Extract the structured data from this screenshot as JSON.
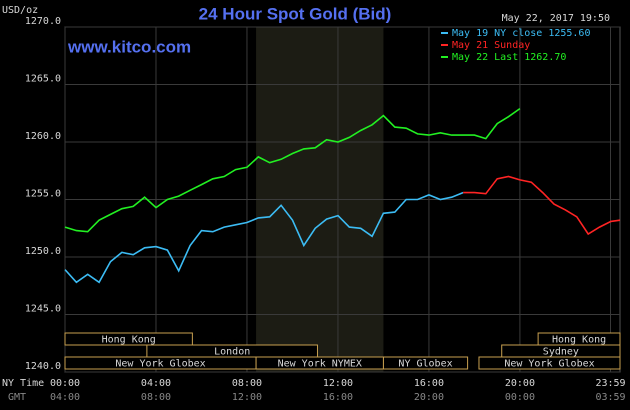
{
  "chart_data": {
    "type": "line",
    "title": "24 Hour Spot Gold (Bid)",
    "website": "www.kitco.com",
    "y_label": "USD/oz",
    "timestamp": "May 22, 2017 19:50",
    "x_label": "NY Time",
    "x2_label": "GMT",
    "xlim": [
      0,
      24.4
    ],
    "ylim": [
      1240,
      1270
    ],
    "yticks": [
      {
        "value": 1240,
        "label": "1240.0"
      },
      {
        "value": 1245,
        "label": "1245.0"
      },
      {
        "value": 1250,
        "label": "1250.0"
      },
      {
        "value": 1255,
        "label": "1255.0"
      },
      {
        "value": 1260,
        "label": "1260.0"
      },
      {
        "value": 1265,
        "label": "1265.0"
      },
      {
        "value": 1270,
        "label": "1270.0"
      }
    ],
    "xticks": [
      {
        "value": 0,
        "label": "00:00"
      },
      {
        "value": 4,
        "label": "04:00"
      },
      {
        "value": 8,
        "label": "08:00"
      },
      {
        "value": 12,
        "label": "12:00"
      },
      {
        "value": 16,
        "label": "16:00"
      },
      {
        "value": 20,
        "label": "20:00"
      },
      {
        "value": 23.983,
        "label": "23:59"
      }
    ],
    "gmt_labels": [
      "04:00",
      "08:00",
      "12:00",
      "16:00",
      "20:00",
      "00:00",
      "03:59"
    ],
    "grid": true,
    "series": [
      {
        "name": "May 19 NY close 1255.60",
        "color": "#3cbcf4",
        "x": [
          0,
          0.5,
          1,
          1.5,
          2,
          2.5,
          3,
          3.5,
          4,
          4.5,
          5,
          5.5,
          6,
          6.5,
          7,
          7.5,
          8,
          8.5,
          9,
          9.5,
          10,
          10.5,
          11,
          11.5,
          12,
          12.5,
          13,
          13.5,
          14,
          14.5,
          15,
          15.5,
          16,
          16.5,
          17,
          17.5
        ],
        "values": [
          1248.9,
          1247.8,
          1248.5,
          1247.8,
          1249.6,
          1250.4,
          1250.2,
          1250.8,
          1250.9,
          1250.6,
          1248.8,
          1251.0,
          1252.3,
          1252.2,
          1252.6,
          1252.8,
          1253.0,
          1253.4,
          1253.5,
          1254.5,
          1253.2,
          1251.0,
          1252.5,
          1253.3,
          1253.6,
          1252.6,
          1252.5,
          1251.8,
          1253.8,
          1253.9,
          1255.0,
          1255.0,
          1255.4,
          1255.0,
          1255.2,
          1255.6
        ]
      },
      {
        "name": "May 21 Sunday",
        "color": "#ff2424",
        "x": [
          17.5,
          18,
          18.5,
          19,
          19.5,
          20,
          20.5,
          21,
          21.5,
          22,
          22.5,
          23,
          23.5,
          24,
          24.4
        ],
        "values": [
          1255.6,
          1255.6,
          1255.5,
          1256.8,
          1257.0,
          1256.7,
          1256.5,
          1255.6,
          1254.6,
          1254.1,
          1253.5,
          1252.0,
          1252.6,
          1253.1,
          1253.2
        ]
      },
      {
        "name": "May 22 Last 1262.70",
        "color": "#22f022",
        "x": [
          0,
          0.5,
          1,
          1.5,
          2,
          2.5,
          3,
          3.5,
          4,
          4.5,
          5,
          5.5,
          6,
          6.5,
          7,
          7.5,
          8,
          8.5,
          9,
          9.5,
          10,
          10.5,
          11,
          11.5,
          12,
          12.5,
          13,
          13.5,
          14,
          14.5,
          15,
          15.5,
          16,
          16.5,
          17,
          17.5,
          18,
          18.5,
          19,
          19.5,
          20
        ],
        "values": [
          1252.6,
          1252.3,
          1252.2,
          1253.2,
          1253.7,
          1254.2,
          1254.4,
          1255.2,
          1254.3,
          1255.0,
          1255.3,
          1255.8,
          1256.3,
          1256.8,
          1257.0,
          1257.6,
          1257.8,
          1258.7,
          1258.2,
          1258.5,
          1259.0,
          1259.4,
          1259.5,
          1260.2,
          1260.0,
          1260.4,
          1261.0,
          1261.5,
          1262.3,
          1261.3,
          1261.2,
          1260.7,
          1260.6,
          1260.8,
          1260.6,
          1260.6,
          1260.6,
          1260.3,
          1261.6,
          1262.2,
          1262.9
        ]
      }
    ],
    "sessions": [
      {
        "label": "Hong Kong",
        "start": 0,
        "end": 5.6,
        "row": 0
      },
      {
        "label": "Hong Kong",
        "start": 20.8,
        "end": 24.4,
        "row": 0
      },
      {
        "label": "London",
        "start": 3.6,
        "end": 11.1,
        "row": 1
      },
      {
        "label": "Sydney",
        "start": 19.2,
        "end": 24.4,
        "row": 1
      },
      {
        "label": "New York Globex",
        "start": 0,
        "end": 8.4,
        "row": 2
      },
      {
        "label": "New York NYMEX",
        "start": 8.4,
        "end": 14,
        "row": 2
      },
      {
        "label": "NY Globex",
        "start": 14,
        "end": 17.7,
        "row": 2
      },
      {
        "label": "New York Globex",
        "start": 18.2,
        "end": 24.4,
        "row": 2
      }
    ]
  }
}
